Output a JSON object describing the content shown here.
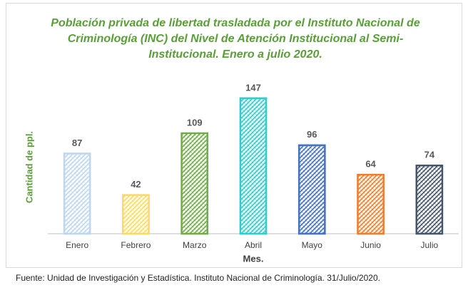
{
  "chart_data": {
    "type": "bar",
    "title": "Población privada de libertad trasladada por el Instituto Nacional de Criminología (INC) del Nivel de Atención Institucional al Semi- Institucional. Enero a julio 2020.",
    "x_label": "Mes.",
    "y_label": "Cantidad de ppl.",
    "categories": [
      "Enero",
      "Febrero",
      "Marzo",
      "Abril",
      "Mayo",
      "Junio",
      "Julio"
    ],
    "values": [
      87,
      42,
      109,
      147,
      96,
      64,
      74
    ],
    "colors": [
      "#bdd7ee",
      "#ffd966",
      "#70ad47",
      "#33cccc",
      "#4472c4",
      "#ed7d31",
      "#44546a"
    ],
    "ylim": [
      0,
      160
    ],
    "source": "Fuente: Unidad de Investigación y Estadística. Instituto Nacional de Criminología. 31/Julio/2020."
  }
}
